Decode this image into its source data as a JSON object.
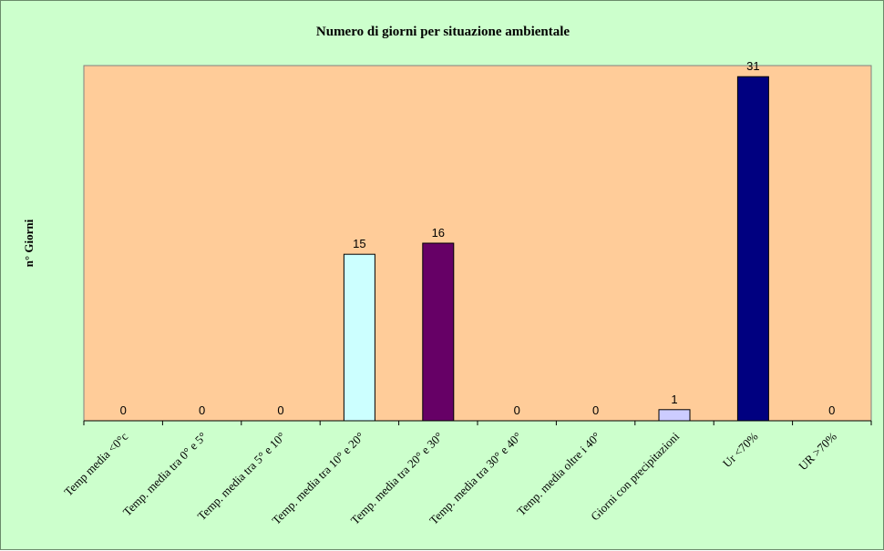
{
  "chart_data": {
    "type": "bar",
    "title": "Numero di giorni per situazione ambientale",
    "xlabel": "",
    "ylabel": "n° Giorni",
    "ylim": [
      0,
      32
    ],
    "grid": false,
    "legend": "none",
    "categories": [
      "Temp media <0°c",
      "Temp. media tra 0° e 5°",
      "Temp. media tra 5° e 10°",
      "Temp. media tra 10° e 20°",
      "Temp. media tra 20° e 30°",
      "Temp. media tra 30° e 40°",
      "Temp. media oltre i 40°",
      "Giorni con precipitazioni",
      "Ur <70%",
      "UR >70%"
    ],
    "values": [
      0,
      0,
      0,
      15,
      16,
      0,
      0,
      1,
      31,
      0
    ],
    "data_labels": [
      "0",
      "0",
      "0",
      "15",
      "16",
      "0",
      "0",
      "1",
      "31",
      "0"
    ],
    "bar_colors": [
      "#ccffff",
      "#ccffff",
      "#ccffff",
      "#ccffff",
      "#660066",
      "#660066",
      "#660066",
      "#ccccff",
      "#000080",
      "#000080"
    ]
  },
  "colors": {
    "background": "#ccffcc",
    "plot_area": "#ffcc99",
    "axis": "#000000"
  }
}
